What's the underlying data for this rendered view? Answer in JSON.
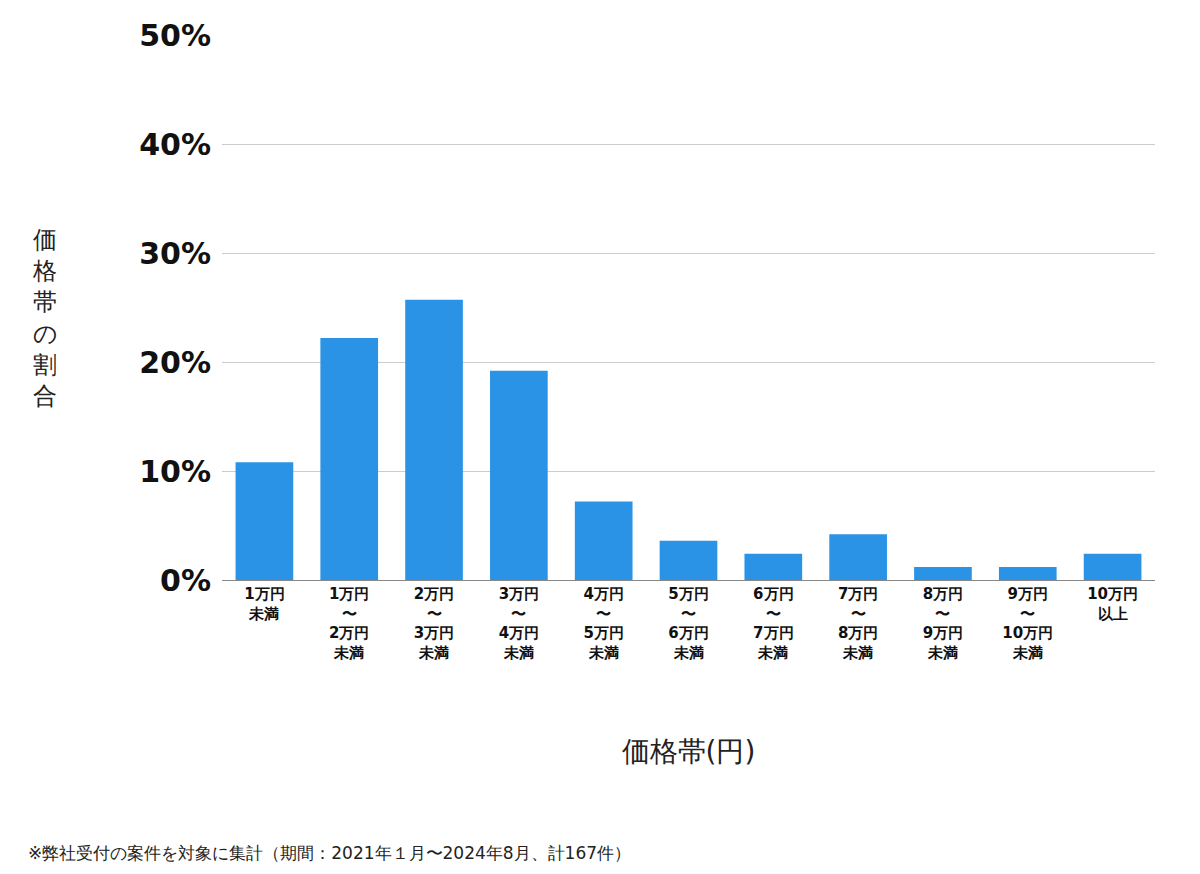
{
  "chart_data": {
    "type": "bar",
    "x_label": "価格帯(円)",
    "y_label": "価格帯の割合",
    "footnote": "※弊社受付の案件を対象に集計（期間：2021年１月〜2024年8月、計167件）",
    "categories": [
      "1万円\n未満",
      "1万円\n〜\n2万円\n未満",
      "2万円\n〜\n3万円\n未満",
      "3万円\n〜\n4万円\n未満",
      "4万円\n〜\n5万円\n未満",
      "5万円\n〜\n6万円\n未満",
      "6万円\n〜\n7万円\n未満",
      "7万円\n〜\n8万円\n未満",
      "8万円\n〜\n9万円\n未満",
      "9万円\n〜\n10万円\n未満",
      "10万円\n以上"
    ],
    "values": [
      10.8,
      22.2,
      25.7,
      19.2,
      7.2,
      3.6,
      2.4,
      4.2,
      1.2,
      1.2,
      2.4
    ],
    "color": "#2a93e6",
    "ylim": [
      0,
      50
    ],
    "yticks": [
      {
        "value": 0,
        "label": "0%"
      },
      {
        "value": 10,
        "label": "10%"
      },
      {
        "value": 20,
        "label": "20%"
      },
      {
        "value": 30,
        "label": "30%"
      },
      {
        "value": 40,
        "label": "40%"
      },
      {
        "value": 50,
        "label": "50%"
      }
    ],
    "grid": true,
    "data_labels": false
  }
}
